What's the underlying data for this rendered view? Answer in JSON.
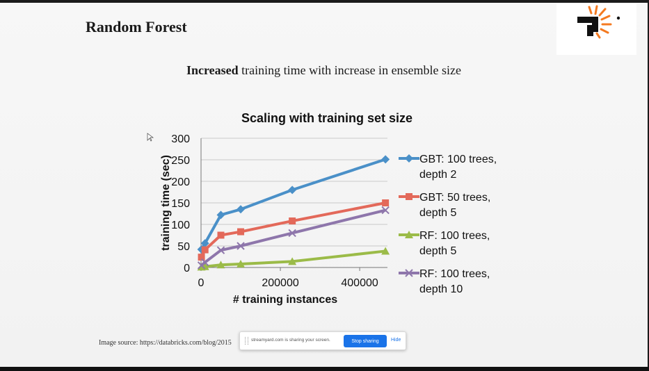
{
  "slide": {
    "title": "Random Forest",
    "subtitle_bold": "Increased",
    "subtitle_rest": " training time with increase in ensemble size",
    "source_note": "Image source: https://databricks.com/blog/2015"
  },
  "share_bar": {
    "message": "streamyard.com is sharing your screen.",
    "stop_label": "Stop sharing",
    "hide_label": "Hide"
  },
  "colors": {
    "logo_black": "#111111",
    "logo_orange": "#f47a20",
    "stop_button": "#1a73e8"
  },
  "chart_data": {
    "type": "line",
    "title": "Scaling with training set size",
    "xlabel": "# training instances",
    "ylabel": "training time (sec)",
    "xlim": [
      0,
      470000
    ],
    "ylim": [
      0,
      300
    ],
    "x_ticks": [
      0,
      200000,
      400000
    ],
    "y_ticks": [
      0,
      50,
      100,
      150,
      200,
      250,
      300
    ],
    "grid": "horizontal",
    "legend": "right",
    "x": [
      1000,
      10000,
      50000,
      100000,
      230000,
      465000
    ],
    "series": [
      {
        "name": "GBT: 100 trees, depth 2",
        "label_lines": [
          "GBT: 100 trees,",
          "depth 2"
        ],
        "color": "#4a90c8",
        "marker": "diamond",
        "values": [
          42,
          56,
          122,
          135,
          180,
          251
        ]
      },
      {
        "name": "GBT: 50 trees, depth 5",
        "label_lines": [
          "GBT: 50 trees,",
          "depth 5"
        ],
        "color": "#e3695a",
        "marker": "square",
        "values": [
          24,
          41,
          75,
          83,
          108,
          150
        ]
      },
      {
        "name": "RF: 100 trees, depth 5",
        "label_lines": [
          "RF: 100 trees,",
          "depth 5"
        ],
        "color": "#9bbb48",
        "marker": "triangle",
        "values": [
          1,
          2,
          6,
          8,
          14,
          38
        ]
      },
      {
        "name": "RF: 100 trees, depth 10",
        "label_lines": [
          "RF: 100 trees,",
          "depth 10"
        ],
        "color": "#8e76ab",
        "marker": "x",
        "values": [
          5,
          12,
          40,
          50,
          80,
          133
        ]
      }
    ]
  }
}
